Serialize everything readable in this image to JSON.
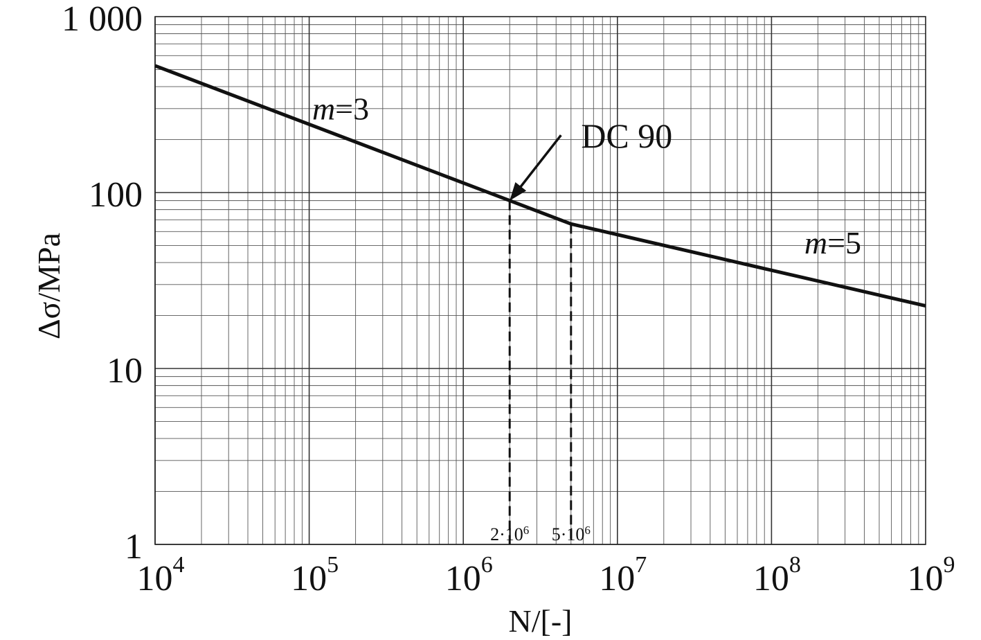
{
  "chart_data": {
    "type": "line",
    "xscale": "log",
    "yscale": "log",
    "xlim": [
      10000,
      1000000000
    ],
    "ylim": [
      1,
      1000
    ],
    "grid": true,
    "xlabel": "N/[-]",
    "ylabel": "Δσ/MPa",
    "x_ticks": [
      {
        "value": 10000,
        "base": "10",
        "exp": "4"
      },
      {
        "value": 100000,
        "base": "10",
        "exp": "5"
      },
      {
        "value": 1000000,
        "base": "10",
        "exp": "6"
      },
      {
        "value": 10000000,
        "base": "10",
        "exp": "7"
      },
      {
        "value": 100000000,
        "base": "10",
        "exp": "8"
      },
      {
        "value": 1000000000,
        "base": "10",
        "exp": "9"
      }
    ],
    "y_ticks": [
      {
        "value": 1,
        "label": "1"
      },
      {
        "value": 10,
        "label": "10"
      },
      {
        "value": 100,
        "label": "100"
      },
      {
        "value": 1000,
        "label": "1 000"
      }
    ],
    "series": [
      {
        "x": [
          10000,
          2000000,
          5000000,
          1000000000
        ],
        "y": [
          526,
          90,
          66.3,
          22.7
        ]
      }
    ],
    "reference_lines": [
      {
        "x": 2000000,
        "y": 90,
        "label_prefix": "2·10",
        "label_exp": "6"
      },
      {
        "x": 5000000,
        "y": 66.3,
        "label_prefix": "5·10",
        "label_exp": "6"
      }
    ],
    "annotations": {
      "slope1": {
        "italic": "m",
        "rest": "=3",
        "x": 160000,
        "y": 260
      },
      "slope2": {
        "italic": "m",
        "rest": "=5",
        "x": 250000000,
        "y": 45
      },
      "detail": {
        "text": "DC 90",
        "x": 2000000,
        "y": 90,
        "text_x": 11500000,
        "text_y": 180
      }
    }
  }
}
